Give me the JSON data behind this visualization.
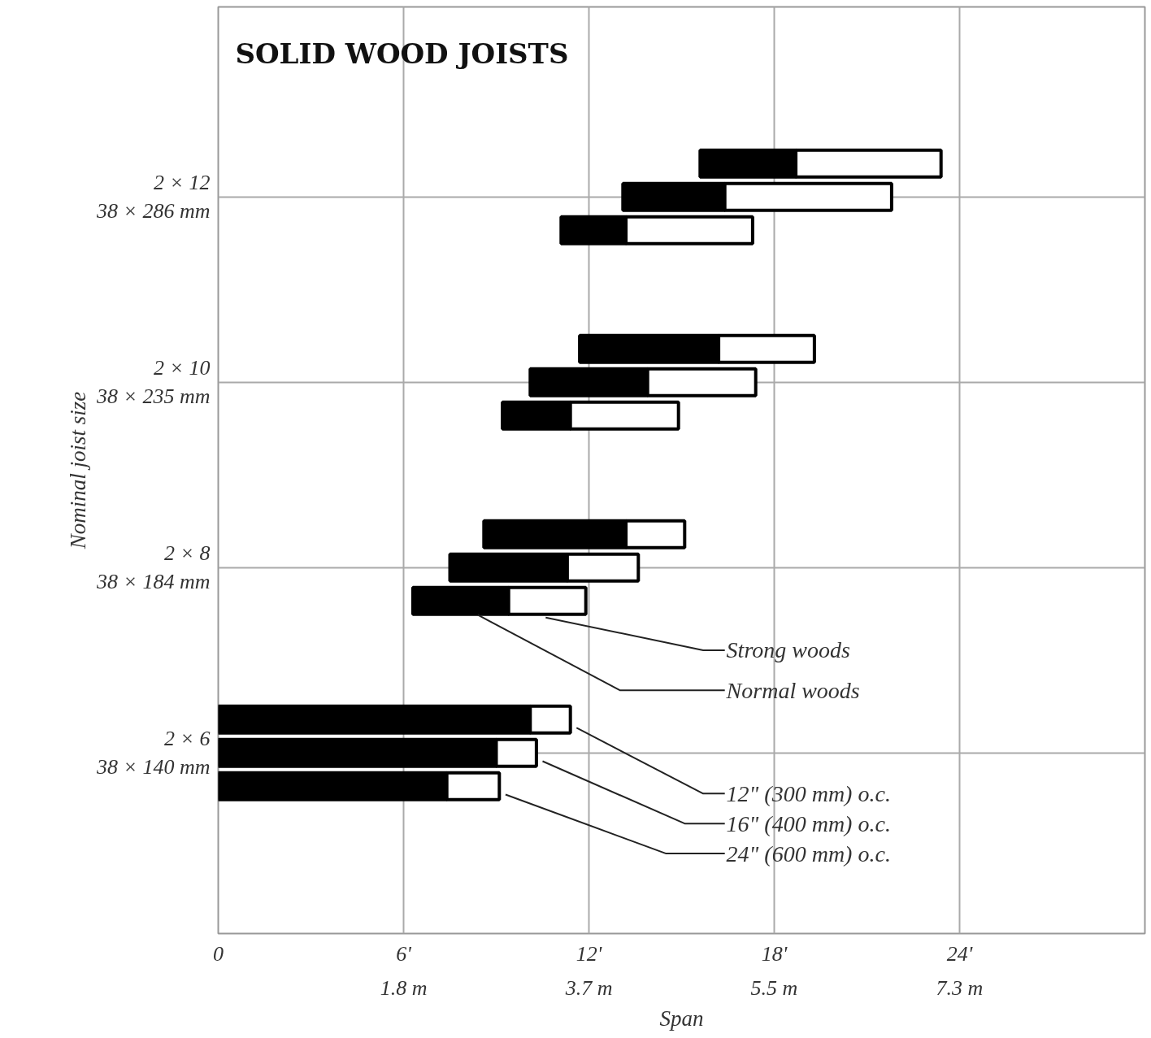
{
  "chart_data": {
    "type": "bar",
    "orientation": "horizontal",
    "title": "SOLID WOOD JOISTS",
    "xlabel": "Span",
    "ylabel": "Nominal joist size",
    "categories": [
      null,
      "2 × 12\n38 × 286 mm",
      null,
      null,
      "2 × 10\n38 × 235 mm",
      null,
      null,
      "2 × 8\n38 × 184 mm",
      null,
      null,
      "2 × 6\n38 × 140 mm",
      null
    ],
    "series": [
      {
        "name": "Normal woods",
        "color": "#000000",
        "base": [
          15.6,
          13.1,
          11.1,
          11.7,
          10.1,
          9.2,
          8.6,
          7.5,
          6.3,
          0,
          0,
          0
        ],
        "values": [
          3.1,
          3.3,
          2.1,
          4.5,
          3.8,
          2.2,
          4.6,
          3.8,
          3.1,
          10.1,
          9.0,
          7.4
        ]
      },
      {
        "name": "Strong woods",
        "color": "#ffffff",
        "base": [
          18.7,
          16.4,
          13.2,
          16.2,
          13.9,
          11.4,
          13.2,
          11.3,
          9.4,
          10.1,
          9.0,
          7.4
        ],
        "values": [
          4.7,
          5.4,
          4.1,
          3.1,
          3.5,
          3.5,
          1.9,
          2.3,
          2.5,
          1.3,
          1.3,
          1.7
        ]
      }
    ],
    "xlim": [
      0,
      30
    ],
    "xticks": [
      0,
      {
        "value": 6,
        "label": "6'"
      },
      {
        "value": 12,
        "label": "12'"
      },
      {
        "value": 18,
        "label": "18'"
      },
      {
        "value": 24,
        "label": "24'"
      }
    ],
    "x2lim": [
      0,
      9.144
    ],
    "x2ticks": [
      {
        "value": 1.829,
        "label": "1.8 m"
      },
      {
        "value": 3.658,
        "label": "3.7 m"
      },
      {
        "value": 5.486,
        "label": "5.5 m"
      },
      {
        "value": 7.315,
        "label": "7.3 m"
      }
    ],
    "grid": true,
    "annotations": [
      "12\" (300 mm) o.c.",
      "16\" (400 mm) o.c.",
      "24\" (600 mm) o.c."
    ]
  }
}
